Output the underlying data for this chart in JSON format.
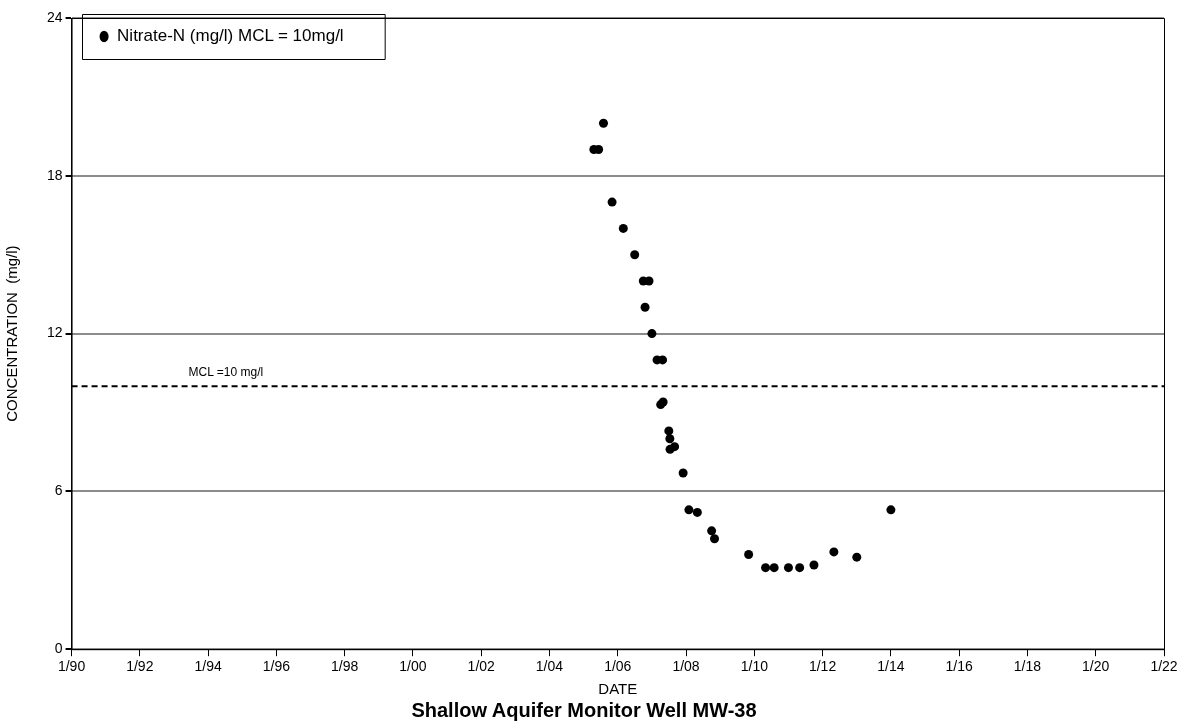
{
  "chart_data": {
    "type": "scatter",
    "title": "Shallow Aquifer Monitor Well MW-38",
    "xlabel": "DATE",
    "ylabel": "CONCENTRATION  (mg/l)",
    "x": [
      "2005-04-20",
      "2005-06-10",
      "2005-08",
      "2005-11",
      "2006-03",
      "2006-07",
      "2006-10",
      "2006-10-20",
      "2006-12",
      "2007-01",
      "2007-02-25",
      "2007-04-25",
      "2007-04-05",
      "2007-05",
      "2007-07",
      "2007-07-12",
      "2007-07-14",
      "2007-09",
      "2007-12",
      "2008-02",
      "2008-05",
      "2008-10",
      "2008-11",
      "2009-11",
      "2010-05",
      "2010-08",
      "2011-01",
      "2011-05",
      "2011-10",
      "2012-05",
      "2013-01",
      "2014-01"
    ],
    "series": [
      {
        "name": "Nitrate-N (mg/l) MCL = 10mg/l",
        "color": "#000000",
        "values": [
          19,
          19,
          20,
          17,
          16,
          15,
          14,
          13,
          14,
          12,
          11,
          11,
          9.3,
          9.4,
          8.3,
          8.0,
          7.6,
          7.7,
          6.7,
          5.3,
          5.2,
          4.5,
          4.2,
          3.6,
          3.1,
          3.1,
          3.1,
          3.1,
          3.2,
          3.7,
          3.5,
          5.3
        ]
      }
    ],
    "xlim": [
      "1990-01",
      "2022-01"
    ],
    "xticks": [
      {
        "value": "1990-01",
        "label": "1/90"
      },
      {
        "value": "1992-01",
        "label": "1/92"
      },
      {
        "value": "1994-01",
        "label": "1/94"
      },
      {
        "value": "1996-01",
        "label": "1/96"
      },
      {
        "value": "1998-01",
        "label": "1/98"
      },
      {
        "value": "2000-01",
        "label": "1/00"
      },
      {
        "value": "2002-01",
        "label": "1/02"
      },
      {
        "value": "2004-01",
        "label": "1/04"
      },
      {
        "value": "2006-01",
        "label": "1/06"
      },
      {
        "value": "2008-01",
        "label": "1/08"
      },
      {
        "value": "2010-01",
        "label": "1/10"
      },
      {
        "value": "2012-01",
        "label": "1/12"
      },
      {
        "value": "2014-01",
        "label": "1/14"
      },
      {
        "value": "2016-01",
        "label": "1/16"
      },
      {
        "value": "2018-01",
        "label": "1/18"
      },
      {
        "value": "2020-01",
        "label": "1/20"
      },
      {
        "value": "2022-01",
        "label": "1/22"
      }
    ],
    "ylim": [
      0,
      24
    ],
    "yticks": [
      0,
      6,
      12,
      18,
      24
    ],
    "ref_lines": [
      {
        "axis": "y",
        "value": 10,
        "label": "MCL =10 mg/l",
        "color": "#000000",
        "line_style": "dashed"
      }
    ],
    "grid": "y",
    "legend": "top left",
    "marker": "circle"
  }
}
